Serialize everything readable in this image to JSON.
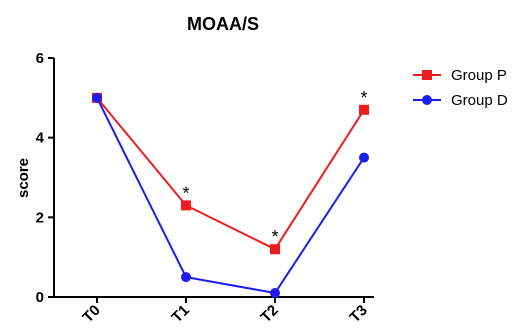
{
  "chart_data": {
    "type": "line",
    "title": "MOAA/S",
    "xlabel": "",
    "ylabel": "score",
    "categories": [
      "T0",
      "T1",
      "T2",
      "T3"
    ],
    "ylim": [
      0,
      6
    ],
    "yticks": [
      "0",
      "2",
      "4",
      "6"
    ],
    "grid": false,
    "legend_position": "right",
    "series": [
      {
        "name": "Group P",
        "color": "#ee1c1c",
        "marker": "square",
        "values": [
          5.0,
          2.3,
          1.2,
          4.7
        ]
      },
      {
        "name": "Group D",
        "color": "#1c1cee",
        "marker": "circle",
        "values": [
          5.0,
          0.5,
          0.1,
          3.5
        ]
      }
    ],
    "annotations": [
      {
        "text": "*",
        "category": "T1",
        "value": 2.3
      },
      {
        "text": "*",
        "category": "T2",
        "value": 1.2
      },
      {
        "text": "*",
        "category": "T3",
        "value": 4.7
      }
    ]
  }
}
